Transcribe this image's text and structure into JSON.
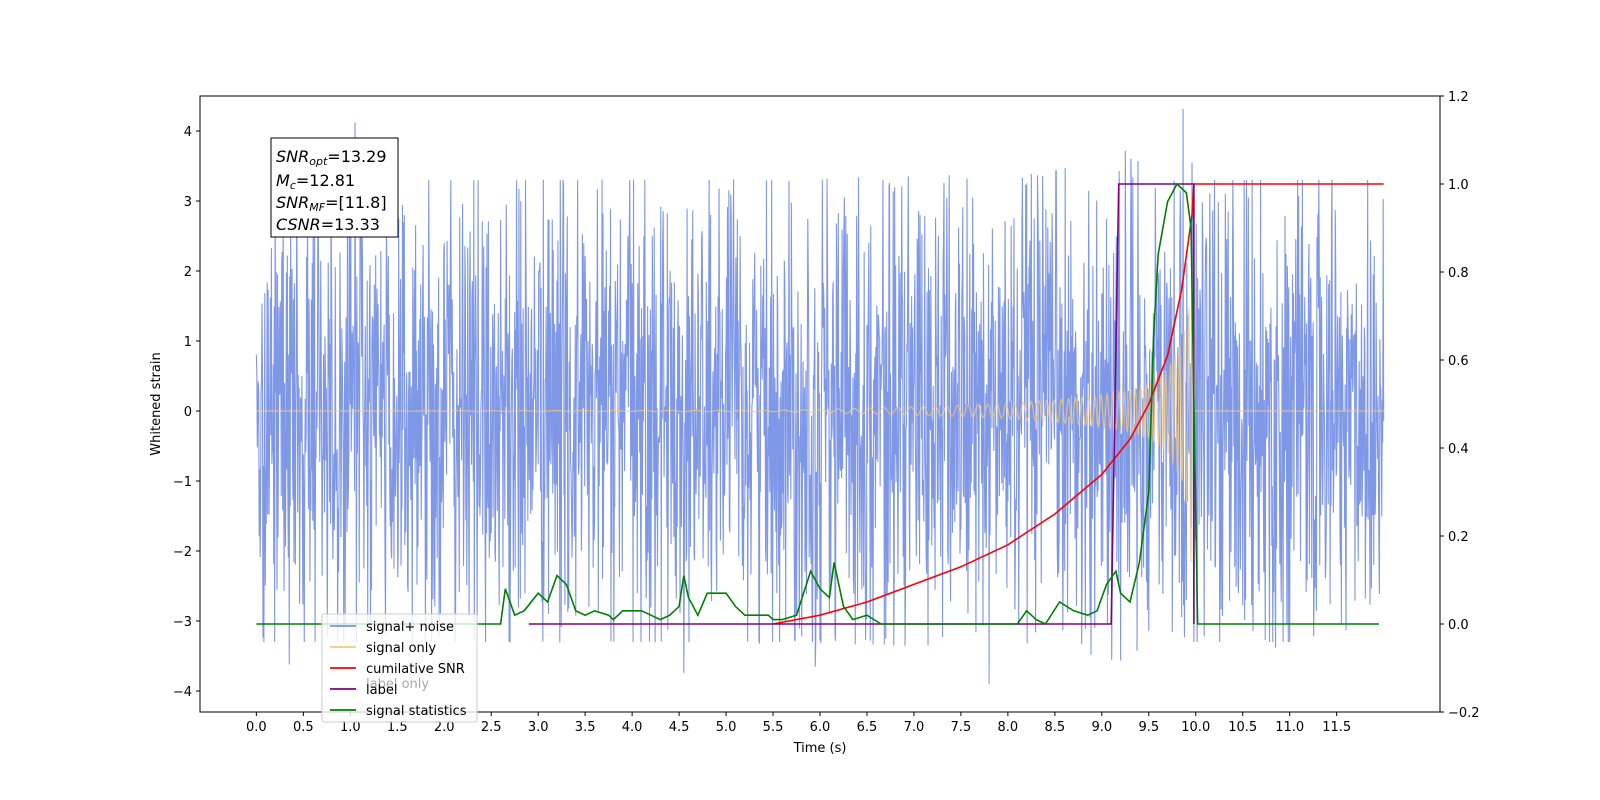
{
  "chart_data": {
    "type": "line",
    "title": "",
    "xlabel": "Time (s)",
    "ylabel": "Whitened strain",
    "xlim": [
      -0.6,
      12.6
    ],
    "ylim": [
      -4.3,
      4.5
    ],
    "y2lim": [
      -0.2,
      1.2
    ],
    "x_ticks": [
      "0.0",
      "0.5",
      "1.0",
      "1.5",
      "2.0",
      "2.5",
      "3.0",
      "3.5",
      "4.0",
      "4.5",
      "5.0",
      "5.5",
      "6.0",
      "6.5",
      "7.0",
      "7.5",
      "8.0",
      "8.5",
      "9.0",
      "9.5",
      "10.0",
      "10.5",
      "11.0",
      "11.5"
    ],
    "y_ticks": [
      "−4",
      "−3",
      "−2",
      "−1",
      "0",
      "1",
      "2",
      "3",
      "4"
    ],
    "y2_ticks": [
      "−0.2",
      "0.0",
      "0.2",
      "0.4",
      "0.6",
      "0.8",
      "1.0",
      "1.2"
    ],
    "grid": false,
    "legend_placement": "lower-left",
    "info_box": {
      "line1_base": "SNR",
      "line1_sub": "opt",
      "line1_value": "=13.29",
      "line2_base": "M",
      "line2_sub": "c",
      "line2_value": "=12.81",
      "line3_base": "SNR",
      "line3_sub": "MF",
      "line3_value": "=[11.8]",
      "line4_base": "CSNR",
      "line4_value": "=13.33"
    },
    "series": [
      {
        "name": "signal+ noise",
        "axis": "left",
        "color": "#7891e6",
        "description_envelope_upper": [
          [
            0.0,
            2.2
          ],
          [
            12.0,
            2.2
          ]
        ],
        "description_envelope_lower": [
          [
            0.0,
            -2.2
          ],
          [
            12.0,
            -2.2
          ]
        ],
        "notable_spikes": [
          [
            1.05,
            4.12
          ],
          [
            9.25,
            4.0
          ],
          [
            9.97,
            3.48
          ],
          [
            0.35,
            -3.62
          ],
          [
            4.55,
            -3.75
          ],
          [
            5.95,
            -3.67
          ],
          [
            7.8,
            -3.8
          ],
          [
            10.85,
            -3.38
          ],
          [
            9.5,
            -3.4
          ],
          [
            9.75,
            -3.35
          ]
        ]
      },
      {
        "name": "signal only",
        "axis": "left",
        "color": "#f5c97a",
        "amplitude_envelope": [
          [
            0.0,
            0.0
          ],
          [
            5.5,
            0.01
          ],
          [
            6.0,
            0.02
          ],
          [
            6.5,
            0.04
          ],
          [
            7.0,
            0.06
          ],
          [
            7.5,
            0.08
          ],
          [
            8.0,
            0.11
          ],
          [
            8.5,
            0.16
          ],
          [
            9.0,
            0.23
          ],
          [
            9.3,
            0.3
          ],
          [
            9.5,
            0.4
          ],
          [
            9.7,
            0.6
          ],
          [
            9.85,
            1.0
          ],
          [
            9.93,
            1.5
          ],
          [
            9.96,
            2.6
          ],
          [
            9.98,
            0.0
          ],
          [
            12.0,
            0.0
          ]
        ]
      },
      {
        "name": "cumilative SNR",
        "axis": "right",
        "color": "#ff0000",
        "points": [
          [
            5.5,
            0.0
          ],
          [
            6.0,
            0.02
          ],
          [
            6.5,
            0.05
          ],
          [
            7.0,
            0.09
          ],
          [
            7.5,
            0.13
          ],
          [
            8.0,
            0.18
          ],
          [
            8.5,
            0.25
          ],
          [
            9.0,
            0.34
          ],
          [
            9.3,
            0.42
          ],
          [
            9.5,
            0.5
          ],
          [
            9.7,
            0.61
          ],
          [
            9.85,
            0.76
          ],
          [
            9.96,
            0.93
          ],
          [
            9.98,
            1.0
          ],
          [
            12.0,
            1.0
          ]
        ]
      },
      {
        "name": "label",
        "axis": "right",
        "color": "#800080",
        "points": [
          [
            2.9,
            0.0
          ],
          [
            9.1,
            0.0
          ],
          [
            9.18,
            1.0
          ],
          [
            9.98,
            1.0
          ],
          [
            9.98,
            0.0
          ]
        ]
      },
      {
        "name": "signal statistics",
        "axis": "right",
        "color": "#008000",
        "points": [
          [
            0.0,
            0.0
          ],
          [
            2.4,
            0.0
          ],
          [
            2.5,
            0.0
          ],
          [
            2.6,
            0.0
          ],
          [
            2.65,
            0.08
          ],
          [
            2.75,
            0.02
          ],
          [
            2.85,
            0.03
          ],
          [
            3.0,
            0.07
          ],
          [
            3.1,
            0.05
          ],
          [
            3.2,
            0.11
          ],
          [
            3.3,
            0.09
          ],
          [
            3.4,
            0.03
          ],
          [
            3.5,
            0.02
          ],
          [
            3.6,
            0.03
          ],
          [
            3.75,
            0.02
          ],
          [
            3.8,
            0.01
          ],
          [
            3.9,
            0.03
          ],
          [
            4.0,
            0.03
          ],
          [
            4.1,
            0.03
          ],
          [
            4.2,
            0.02
          ],
          [
            4.3,
            0.01
          ],
          [
            4.4,
            0.02
          ],
          [
            4.5,
            0.04
          ],
          [
            4.55,
            0.11
          ],
          [
            4.6,
            0.06
          ],
          [
            4.7,
            0.02
          ],
          [
            4.8,
            0.07
          ],
          [
            4.9,
            0.07
          ],
          [
            5.0,
            0.07
          ],
          [
            5.1,
            0.04
          ],
          [
            5.2,
            0.02
          ],
          [
            5.35,
            0.02
          ],
          [
            5.45,
            0.02
          ],
          [
            5.5,
            0.01
          ],
          [
            5.6,
            0.01
          ],
          [
            5.75,
            0.02
          ],
          [
            5.9,
            0.12
          ],
          [
            6.0,
            0.08
          ],
          [
            6.1,
            0.06
          ],
          [
            6.15,
            0.14
          ],
          [
            6.25,
            0.04
          ],
          [
            6.35,
            0.01
          ],
          [
            6.5,
            0.02
          ],
          [
            6.65,
            0.0
          ],
          [
            7.0,
            0.0
          ],
          [
            8.1,
            0.0
          ],
          [
            8.2,
            0.03
          ],
          [
            8.3,
            0.01
          ],
          [
            8.4,
            0.0
          ],
          [
            8.55,
            0.05
          ],
          [
            8.7,
            0.03
          ],
          [
            8.85,
            0.02
          ],
          [
            8.95,
            0.03
          ],
          [
            9.05,
            0.09
          ],
          [
            9.15,
            0.12
          ],
          [
            9.2,
            0.07
          ],
          [
            9.3,
            0.05
          ],
          [
            9.4,
            0.14
          ],
          [
            9.5,
            0.3
          ],
          [
            9.55,
            0.65
          ],
          [
            9.6,
            0.84
          ],
          [
            9.7,
            0.96
          ],
          [
            9.8,
            1.0
          ],
          [
            9.9,
            0.98
          ],
          [
            9.95,
            0.9
          ],
          [
            9.98,
            0.5
          ],
          [
            10.02,
            0.0
          ],
          [
            11.95,
            0.0
          ]
        ]
      }
    ],
    "legend": [
      {
        "label": "signal+ noise",
        "color": "#7891e6"
      },
      {
        "label": "signal only",
        "color": "#f5c97a"
      },
      {
        "label": "cumilative SNR",
        "color": "#ff0000"
      },
      {
        "label": "label",
        "color": "#800080"
      },
      {
        "label": "signal statistics",
        "color": "#008000"
      }
    ],
    "hidden_legend_text": "label only"
  }
}
